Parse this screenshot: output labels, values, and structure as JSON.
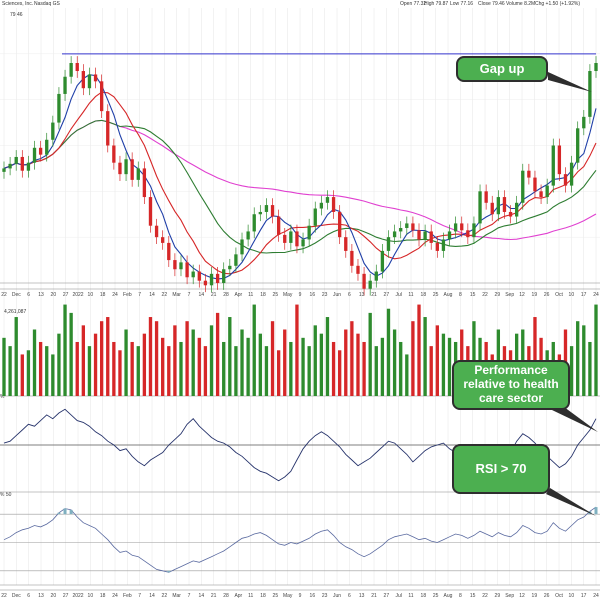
{
  "header": {
    "company": "Sciences, Inc.",
    "exchange": "Nasdaq GS",
    "open": "Open 77.32",
    "high": "High 79.87",
    "low": "Low 77.16",
    "close": "Close 79.46",
    "volume": "Volume 8.2M",
    "change": "Chg +1.50 (+1.92%)",
    "legend_close": "79.46",
    "volume_label": "4,261,087",
    "rs_label": "%",
    "rsi_label": "% 50"
  },
  "callouts": {
    "gap_up": "Gap up",
    "performance": "Performance relative to health care sector",
    "rsi": "RSI > 70"
  },
  "colors": {
    "up": "#2e8b2e",
    "down": "#d62728",
    "sma_short": "#1f3fa8",
    "sma_mid": "#d62728",
    "sma_long": "#2e7d32",
    "sma_200": "#e040d0",
    "resistance": "#3333cc",
    "callout": "#4caf50"
  },
  "x_ticks": [
    "22",
    "Dec",
    "6",
    "13",
    "20",
    "27",
    "2022",
    "10",
    "18",
    "24",
    "Feb",
    "7",
    "14",
    "22",
    "Mar",
    "7",
    "14",
    "21",
    "28",
    "Apr",
    "11",
    "18",
    "25",
    "May",
    "9",
    "16",
    "23",
    "Jun",
    "6",
    "13",
    "21",
    "27",
    "Jul",
    "11",
    "18",
    "25",
    "Aug",
    "8",
    "15",
    "22",
    "29",
    "Sep",
    "12",
    "19",
    "26",
    "Oct",
    "10",
    "17",
    "24"
  ],
  "chart_data": [
    {
      "type": "line",
      "name": "price",
      "ylim": [
        60,
        84
      ],
      "resistance": 80,
      "values": [
        70.0,
        70.4,
        71.0,
        69.8,
        70.5,
        71.8,
        71.2,
        72.5,
        74.0,
        76.5,
        78.0,
        79.2,
        78.5,
        77.0,
        78.2,
        77.6,
        75.0,
        72.0,
        70.5,
        69.5,
        70.8,
        69.0,
        70.0,
        67.5,
        65.0,
        64.0,
        63.5,
        62.0,
        61.2,
        61.8,
        60.5,
        61.0,
        60.2,
        59.8,
        60.8,
        60.0,
        61.2,
        61.5,
        62.5,
        63.8,
        64.5,
        66.0,
        66.2,
        66.8,
        65.8,
        64.2,
        63.5,
        64.5,
        63.2,
        63.8,
        65.0,
        66.5,
        67.0,
        67.5,
        66.2,
        64.0,
        62.8,
        61.5,
        60.8,
        59.5,
        60.2,
        61.0,
        62.8,
        64.0,
        64.5,
        64.8,
        65.2,
        64.6,
        63.8,
        64.5,
        63.5,
        62.8,
        63.8,
        64.5,
        65.2,
        64.6,
        64.0,
        65.2,
        68.0,
        67.0,
        66.0,
        67.5,
        66.2,
        65.8,
        67.0,
        69.8,
        69.2,
        68.0,
        67.5,
        68.5,
        72.0,
        69.5,
        68.5,
        70.5,
        73.5,
        74.5,
        78.5,
        79.2
      ],
      "volume": [
        14,
        12,
        19,
        10,
        11,
        16,
        13,
        12,
        10,
        15,
        22,
        20,
        13,
        17,
        12,
        15,
        18,
        19,
        13,
        11,
        16,
        13,
        12,
        15,
        19,
        18,
        14,
        12,
        17,
        13,
        18,
        16,
        14,
        12,
        17,
        20,
        13,
        19,
        12,
        16,
        14,
        22,
        15,
        12,
        18,
        11,
        16,
        13,
        22,
        14,
        12,
        17,
        15,
        19,
        13,
        11,
        16,
        18,
        15,
        13,
        20,
        12,
        14,
        21,
        16,
        13,
        10,
        18,
        22,
        19,
        12,
        17,
        15,
        14,
        13,
        16,
        12,
        18,
        14,
        13,
        10,
        16,
        12,
        11,
        15,
        16,
        12,
        19,
        14,
        11,
        13,
        10,
        16,
        12,
        18,
        17,
        13,
        22
      ],
      "rs": [
        0.05,
        0.1,
        0.25,
        0.4,
        0.55,
        0.5,
        0.65,
        0.8,
        0.7,
        0.85,
        0.95,
        0.8,
        0.65,
        0.6,
        0.5,
        0.35,
        0.25,
        0.1,
        0.0,
        -0.15,
        -0.1,
        -0.3,
        -0.45,
        -0.55,
        -0.4,
        -0.3,
        -0.2,
        0.0,
        0.15,
        0.3,
        0.55,
        0.7,
        0.5,
        0.35,
        0.2,
        0.1,
        0.05,
        -0.05,
        -0.2,
        -0.3,
        -0.45,
        -0.6,
        -0.7,
        -0.75,
        -0.85,
        -0.95,
        -0.85,
        -0.7,
        -0.4,
        -0.1,
        0.1,
        0.25,
        0.35,
        0.25,
        0.1,
        -0.05,
        -0.25,
        -0.4,
        -0.55,
        -0.45,
        -0.35,
        -0.2,
        -0.05,
        0.1,
        0.05,
        -0.1,
        -0.25,
        -0.45,
        -0.3,
        -0.15,
        -0.05,
        0.0,
        0.05,
        -0.1,
        -0.2,
        -0.35,
        -0.5,
        -0.65,
        -0.8,
        -0.95,
        -0.8,
        -0.6,
        -0.4,
        -0.2,
        0.1,
        0.3,
        0.2,
        0.05,
        -0.15,
        -0.3,
        -0.45,
        -0.6,
        -0.5,
        -0.3,
        0.0,
        0.2,
        0.4,
        0.7
      ],
      "rsi": [
        52,
        54,
        57,
        59,
        60,
        62,
        61,
        63,
        66,
        71,
        74,
        73,
        68,
        64,
        62,
        60,
        56,
        52,
        47,
        43,
        44,
        41,
        40,
        37,
        34,
        31,
        30,
        29,
        31,
        33,
        35,
        37,
        36,
        38,
        40,
        42,
        44,
        47,
        50,
        53,
        54,
        56,
        57,
        55,
        52,
        49,
        48,
        50,
        49,
        51,
        53,
        56,
        58,
        59,
        55,
        50,
        47,
        45,
        42,
        40,
        42,
        45,
        48,
        52,
        54,
        55,
        56,
        54,
        52,
        53,
        51,
        50,
        52,
        54,
        56,
        55,
        53,
        55,
        58,
        56,
        54,
        57,
        55,
        54,
        57,
        62,
        60,
        57,
        56,
        58,
        64,
        60,
        58,
        62,
        66,
        68,
        72,
        75
      ]
    }
  ]
}
